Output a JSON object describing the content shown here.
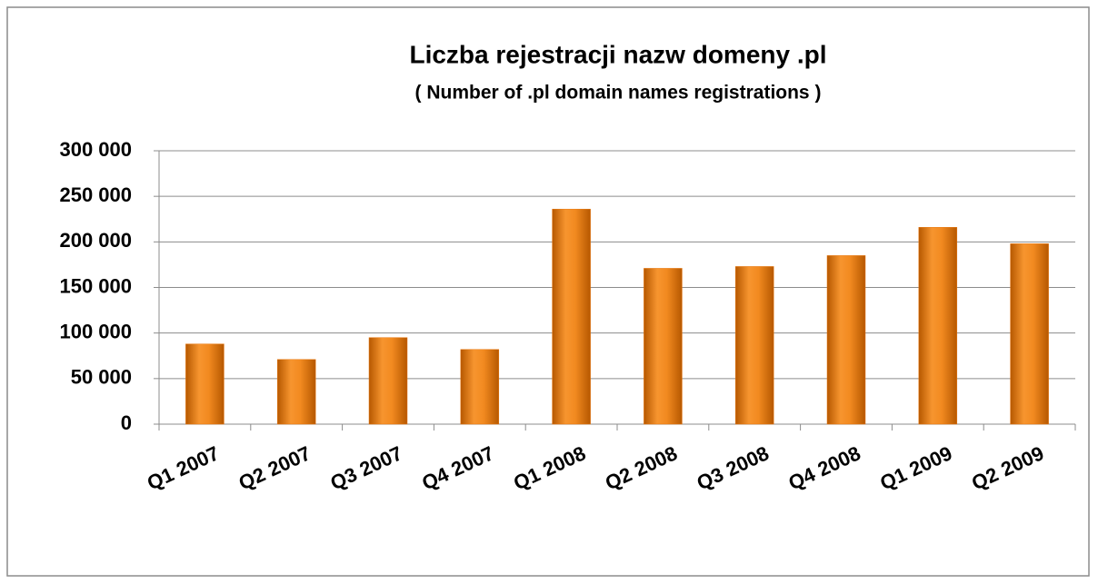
{
  "chart_data": {
    "type": "bar",
    "title": "Liczba rejestracji nazw domeny .pl",
    "subtitle": "( Number of .pl domain names registrations )",
    "categories": [
      "Q1 2007",
      "Q2 2007",
      "Q3 2007",
      "Q4 2007",
      "Q1 2008",
      "Q2 2008",
      "Q3 2008",
      "Q4 2008",
      "Q1 2009",
      "Q2 2009"
    ],
    "values": [
      88000,
      71000,
      95000,
      82000,
      236000,
      171000,
      173000,
      185000,
      216000,
      198000
    ],
    "color": "#e8770f",
    "ylim": [
      0,
      300000
    ],
    "yticks": [
      0,
      {
        "value": 50000,
        "label": "50 000"
      },
      {
        "value": 100000,
        "label": "100 000"
      },
      {
        "value": 150000,
        "label": "150 000"
      },
      {
        "value": 200000,
        "label": "200 000"
      },
      {
        "value": 250000,
        "label": "250 000"
      },
      {
        "value": 300000,
        "label": "300 000"
      }
    ],
    "grid": true
  }
}
